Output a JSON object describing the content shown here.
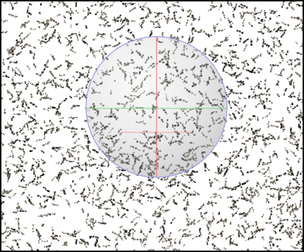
{
  "viewport": {
    "background_color": "#ffffff",
    "border_color": "#000000",
    "point_colors": [
      "#1c1c18",
      "#3a342b",
      "#5a5040",
      "#6f6a5a"
    ],
    "sphere": {
      "fill_color": "#e2e2e4",
      "outline_color": "#9a9ae0",
      "axis_colors": {
        "vertical": "#f06a6a",
        "horizontal": "#7cd67c",
        "depth": "#f0a0a0"
      }
    }
  }
}
